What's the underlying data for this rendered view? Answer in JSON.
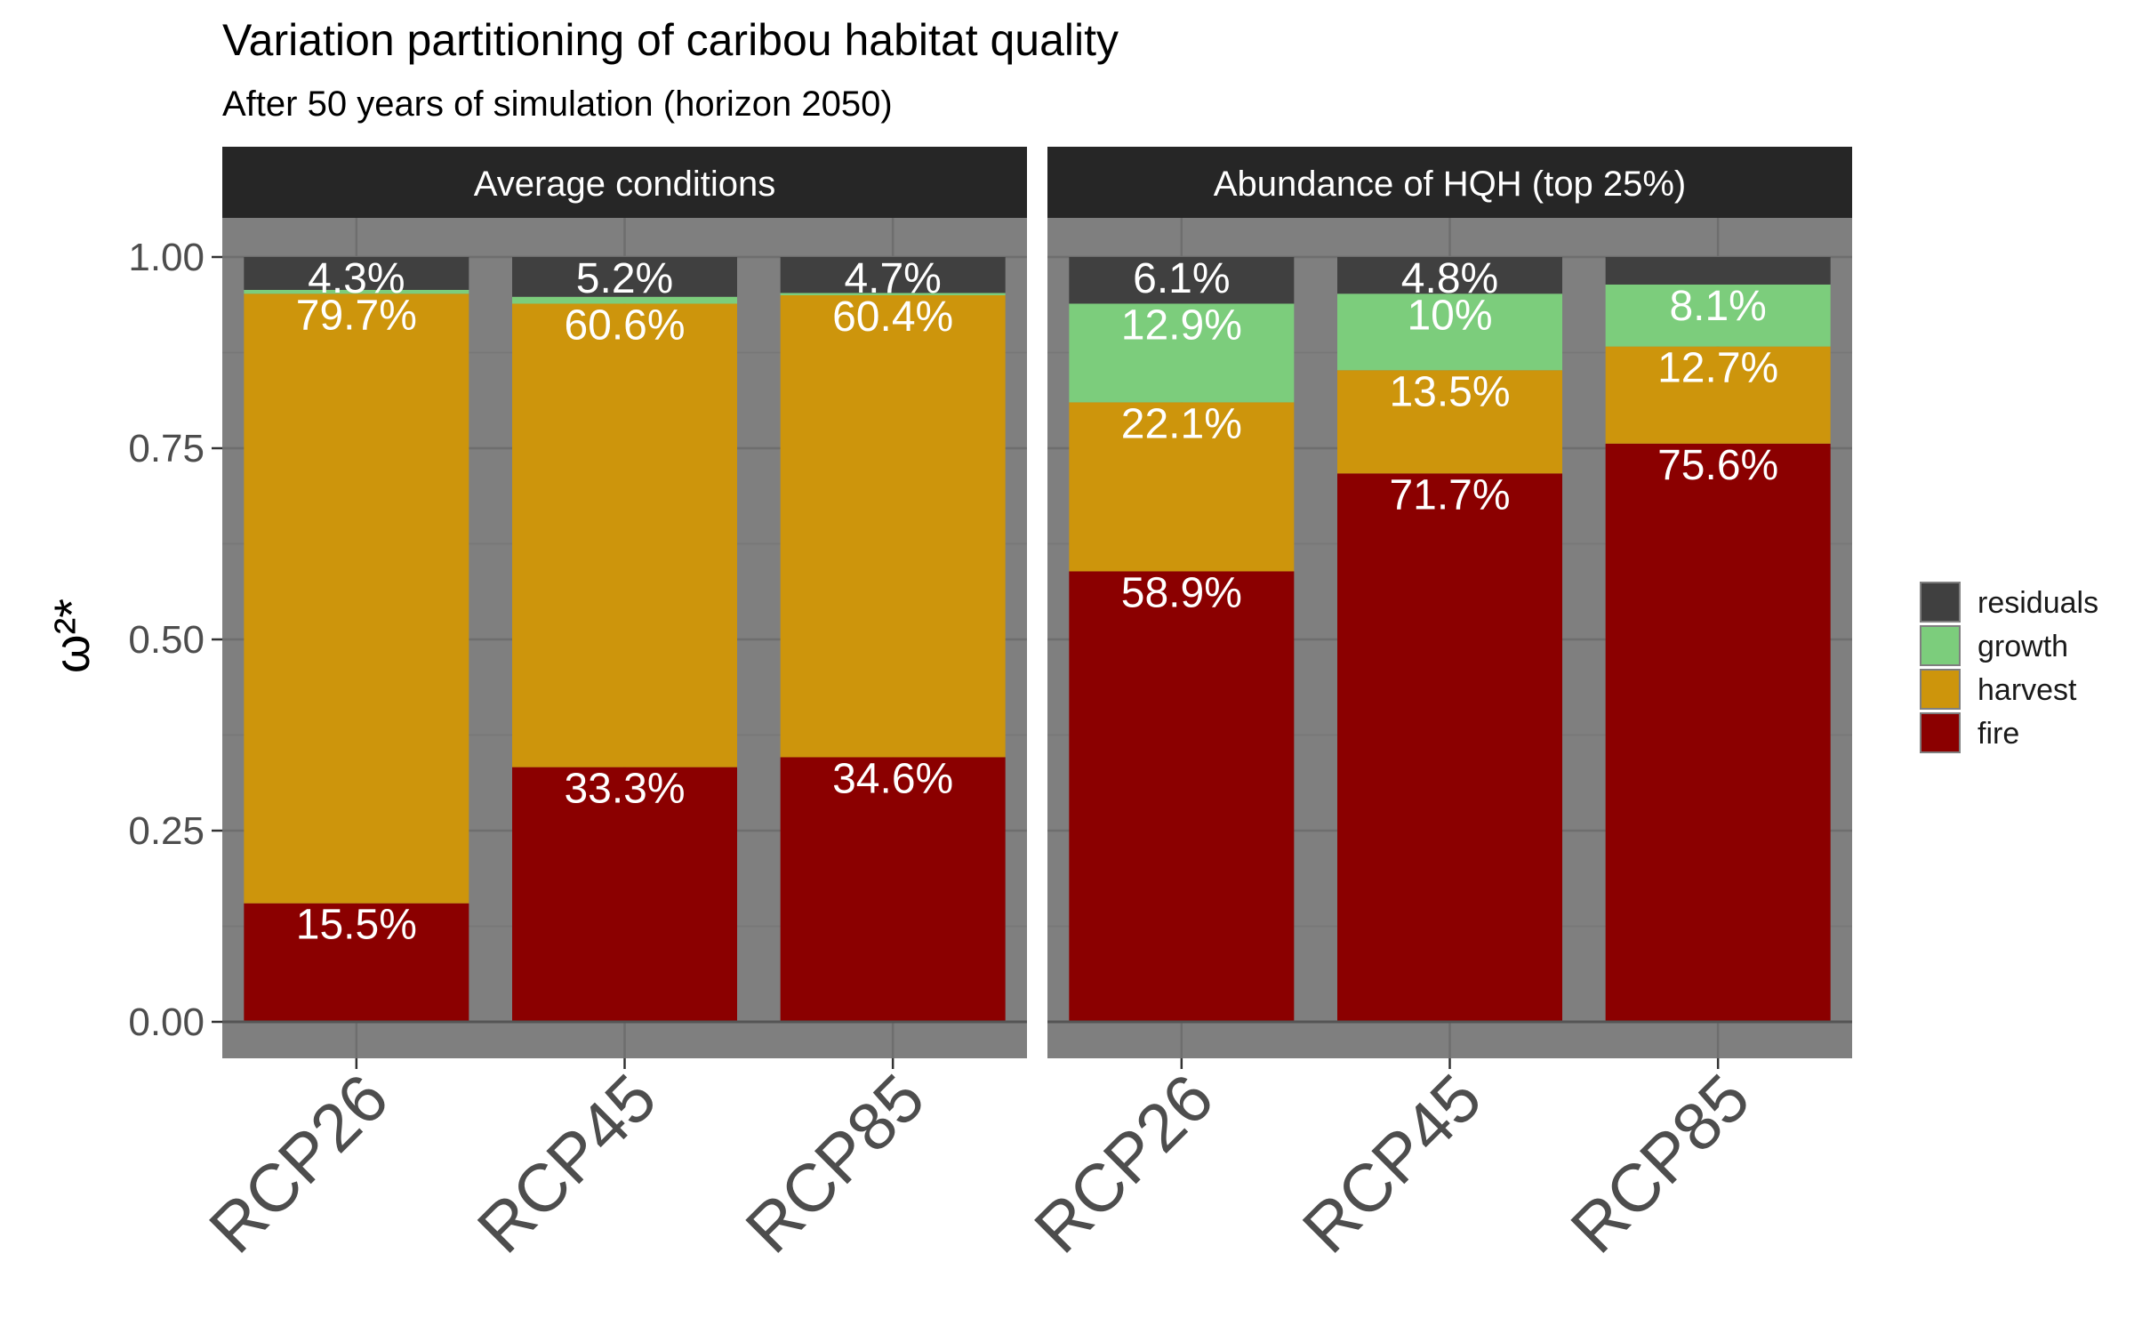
{
  "chart_data": {
    "type": "bar",
    "stacked": true,
    "title": "Variation partitioning of caribou habitat quality",
    "subtitle": "After 50 years of simulation (horizon 2050)",
    "ylabel": "ω²*",
    "ylim": [
      0,
      1
    ],
    "yticks": [
      "0.00",
      "0.25",
      "0.50",
      "0.75",
      "1.00"
    ],
    "categories": [
      "RCP26",
      "RCP45",
      "RCP85"
    ],
    "legend": {
      "position": "right",
      "entries": [
        {
          "name": "residuals",
          "color": "#404040"
        },
        {
          "name": "growth",
          "color": "#7ccd7c"
        },
        {
          "name": "harvest",
          "color": "#cd950c"
        },
        {
          "name": "fire",
          "color": "#8b0000"
        }
      ]
    },
    "panels": [
      {
        "title": "Average conditions",
        "series": [
          {
            "name": "fire",
            "values": [
              0.155,
              0.333,
              0.346
            ],
            "labels": [
              "15.5%",
              "33.3%",
              "34.6%"
            ]
          },
          {
            "name": "harvest",
            "values": [
              0.797,
              0.606,
              0.604
            ],
            "labels": [
              "79.7%",
              "60.6%",
              "60.4%"
            ]
          },
          {
            "name": "growth",
            "values": [
              0.005,
              0.009,
              0.003
            ],
            "labels": [
              "",
              "",
              ""
            ]
          },
          {
            "name": "residuals",
            "values": [
              0.043,
              0.052,
              0.047
            ],
            "labels": [
              "4.3%",
              "5.2%",
              "4.7%"
            ]
          }
        ]
      },
      {
        "title": "Abundance of HQH (top 25%)",
        "series": [
          {
            "name": "fire",
            "values": [
              0.589,
              0.717,
              0.756
            ],
            "labels": [
              "58.9%",
              "71.7%",
              "75.6%"
            ]
          },
          {
            "name": "harvest",
            "values": [
              0.221,
              0.135,
              0.127
            ],
            "labels": [
              "22.1%",
              "13.5%",
              "12.7%"
            ]
          },
          {
            "name": "growth",
            "values": [
              0.129,
              0.1,
              0.081
            ],
            "labels": [
              "12.9%",
              "10%",
              "8.1%"
            ]
          },
          {
            "name": "residuals",
            "values": [
              0.061,
              0.048,
              0.036
            ],
            "labels": [
              "6.1%",
              "4.8%",
              ""
            ]
          }
        ]
      }
    ],
    "colors": {
      "panel_background": "#7f7f7f",
      "grid_major": "#6e6e6e",
      "grid_minor": "#777777",
      "strip_background": "#262626",
      "baseline": "#555555"
    }
  }
}
